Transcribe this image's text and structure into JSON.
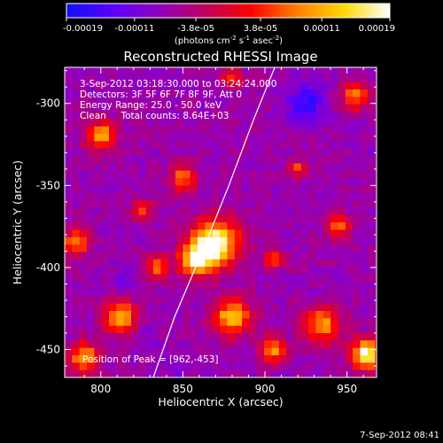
{
  "colorbar": {
    "tick_labels": [
      "-0.00019",
      "-0.00011",
      "-3.8e-05",
      "3.8e-05",
      "0.00011",
      "0.00019"
    ],
    "tick_values": [
      -0.00019,
      -0.00011,
      -3.8e-05,
      3.8e-05,
      0.00011,
      0.00019
    ],
    "range": [
      -0.00019,
      0.00019
    ],
    "units_prefix": "(photons cm",
    "units_exp1": "-2",
    "units_mid": " s",
    "units_exp2": "-1",
    "units_suffix1": " asec",
    "units_exp3": "-2",
    "units_suffix2": ")",
    "colors": [
      "#1010ff",
      "#5a00ff",
      "#9000c0",
      "#c00060",
      "#ff0000",
      "#ff8000",
      "#ffd800",
      "#ffffff"
    ]
  },
  "chart_data": {
    "type": "heatmap",
    "title": "Reconstructed RHESSI Image",
    "xlabel": "Heliocentric X (arcsec)",
    "ylabel": "Heliocentric Y (arcsec)",
    "xlim": [
      778,
      968
    ],
    "ylim": [
      -467,
      -278
    ],
    "x_ticks": [
      800,
      850,
      900,
      950
    ],
    "y_ticks": [
      -300,
      -350,
      -400,
      -450
    ],
    "x_tick_labels": [
      "800",
      "850",
      "900",
      "950"
    ],
    "y_tick_labels": [
      "-300",
      "-350",
      "-400",
      "-450"
    ],
    "annotations": [
      "3-Sep-2012 03:18:30.000 to 03:24:24.000",
      "Detectors: 3F 5F 6F 7F 8F 9F, Att 0",
      "Energy Range: 25.0 - 50.0 keV",
      "Clean     Total counts: 8.64E+03"
    ],
    "peak_label": "Position of Peak = [962,-453]",
    "peak_position": [
      962,
      -453
    ],
    "limb_curve": [
      [
        832,
        -467
      ],
      [
        845,
        -430
      ],
      [
        862,
        -390
      ],
      [
        878,
        -350
      ],
      [
        893,
        -310
      ],
      [
        906,
        -278
      ]
    ],
    "hot_spots": [
      {
        "x": 870,
        "y": -385,
        "r": 14,
        "v": 0.00019
      },
      {
        "x": 858,
        "y": -395,
        "r": 10,
        "v": 0.00015
      },
      {
        "x": 880,
        "y": -430,
        "r": 11,
        "v": 0.00013
      },
      {
        "x": 812,
        "y": -430,
        "r": 10,
        "v": 0.00012
      },
      {
        "x": 790,
        "y": -455,
        "r": 9,
        "v": 0.00011
      },
      {
        "x": 962,
        "y": -453,
        "r": 9,
        "v": 0.00019
      },
      {
        "x": 935,
        "y": -435,
        "r": 11,
        "v": 0.0001
      },
      {
        "x": 905,
        "y": -450,
        "r": 8,
        "v": 9e-05
      },
      {
        "x": 800,
        "y": -320,
        "r": 9,
        "v": 0.00011
      },
      {
        "x": 785,
        "y": -385,
        "r": 8,
        "v": 9e-05
      },
      {
        "x": 850,
        "y": -345,
        "r": 8,
        "v": 8e-05
      },
      {
        "x": 835,
        "y": -400,
        "r": 7,
        "v": 8e-05
      },
      {
        "x": 955,
        "y": -295,
        "r": 8,
        "v": 9e-05
      },
      {
        "x": 945,
        "y": -375,
        "r": 7,
        "v": 7e-05
      },
      {
        "x": 905,
        "y": -395,
        "r": 6,
        "v": 6e-05
      },
      {
        "x": 825,
        "y": -365,
        "r": 6,
        "v": 6e-05
      },
      {
        "x": 880,
        "y": -285,
        "r": 6,
        "v": 6e-05
      },
      {
        "x": 920,
        "y": -340,
        "r": 5,
        "v": 5e-05
      }
    ],
    "cold_spots": [
      {
        "x": 925,
        "y": -300,
        "r": 12,
        "v": -0.00016
      },
      {
        "x": 815,
        "y": -410,
        "r": 8,
        "v": -0.00012
      },
      {
        "x": 830,
        "y": -440,
        "r": 7,
        "v": -0.0001
      },
      {
        "x": 845,
        "y": -460,
        "r": 7,
        "v": -0.00011
      },
      {
        "x": 930,
        "y": -420,
        "r": 6,
        "v": -9e-05
      },
      {
        "x": 960,
        "y": -330,
        "r": 6,
        "v": -8e-05
      }
    ],
    "background_level": -7e-05
  },
  "footer": {
    "timestamp": "7-Sep-2012 08:41"
  }
}
